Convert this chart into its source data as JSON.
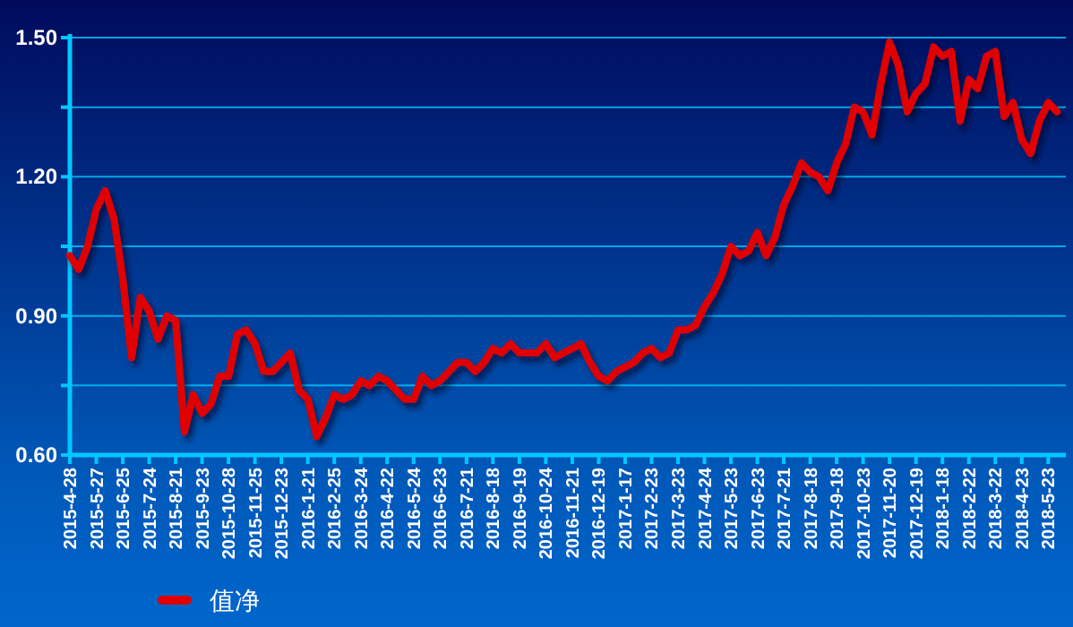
{
  "chart_data": {
    "type": "line",
    "categories": [
      "2015-4-28",
      null,
      null,
      "2015-5-27",
      null,
      null,
      "2015-6-25",
      null,
      null,
      "2015-7-24",
      null,
      null,
      "2015-8-21",
      null,
      null,
      "2015-9-23",
      null,
      null,
      "2015-10-28",
      null,
      null,
      "2015-11-25",
      null,
      null,
      "2015-12-23",
      null,
      null,
      "2016-1-21",
      null,
      null,
      "2016-2-25",
      null,
      null,
      "2016-3-24",
      null,
      null,
      "2016-4-22",
      null,
      null,
      "2016-5-24",
      null,
      null,
      "2016-6-23",
      null,
      null,
      "2016-7-21",
      null,
      null,
      "2016-8-18",
      null,
      null,
      "2016-9-19",
      null,
      null,
      "2016-10-24",
      null,
      null,
      "2016-11-21",
      null,
      null,
      "2016-12-19",
      null,
      null,
      "2017-1-17",
      null,
      null,
      "2017-2-23",
      null,
      null,
      "2017-3-23",
      null,
      null,
      "2017-4-24",
      null,
      null,
      "2017-5-23",
      null,
      null,
      "2017-6-23",
      null,
      null,
      "2017-7-21",
      null,
      null,
      "2017-8-18",
      null,
      null,
      "2017-9-18",
      null,
      null,
      "2017-10-23",
      null,
      null,
      "2017-11-20",
      null,
      null,
      "2017-12-19",
      null,
      null,
      "2018-1-18",
      null,
      null,
      "2018-2-22",
      null,
      null,
      "2018-3-22",
      null,
      null,
      "2018-4-23",
      null,
      null,
      "2018-5-23",
      null
    ],
    "series": [
      {
        "name": "值净",
        "color": "#e00000",
        "values": [
          1.03,
          1.0,
          1.05,
          1.13,
          1.17,
          1.11,
          0.98,
          0.81,
          0.94,
          0.91,
          0.85,
          0.9,
          0.89,
          0.65,
          0.73,
          0.69,
          0.71,
          0.77,
          0.77,
          0.86,
          0.87,
          0.84,
          0.78,
          0.78,
          0.8,
          0.82,
          0.74,
          0.72,
          0.64,
          0.68,
          0.73,
          0.72,
          0.73,
          0.76,
          0.75,
          0.77,
          0.76,
          0.74,
          0.72,
          0.72,
          0.77,
          0.75,
          0.76,
          0.78,
          0.8,
          0.8,
          0.78,
          0.8,
          0.83,
          0.82,
          0.84,
          0.82,
          0.82,
          0.82,
          0.84,
          0.81,
          0.82,
          0.83,
          0.84,
          0.8,
          0.77,
          0.76,
          0.78,
          0.79,
          0.8,
          0.82,
          0.83,
          0.81,
          0.82,
          0.87,
          0.87,
          0.88,
          0.92,
          0.95,
          0.99,
          1.05,
          1.03,
          1.04,
          1.08,
          1.03,
          1.07,
          1.14,
          1.18,
          1.23,
          1.21,
          1.2,
          1.17,
          1.23,
          1.27,
          1.35,
          1.34,
          1.29,
          1.4,
          1.49,
          1.44,
          1.34,
          1.38,
          1.4,
          1.48,
          1.46,
          1.47,
          1.32,
          1.41,
          1.39,
          1.46,
          1.47,
          1.33,
          1.36,
          1.28,
          1.25,
          1.32,
          1.36,
          1.34
        ]
      }
    ],
    "ylim": [
      0.6,
      1.5
    ],
    "yticks": [
      {
        "value": 0.6,
        "label": "0.60"
      },
      {
        "value": 0.75,
        "label": null
      },
      {
        "value": 0.9,
        "label": "0.90"
      },
      {
        "value": 1.05,
        "label": null
      },
      {
        "value": 1.2,
        "label": "1.20"
      },
      {
        "value": 1.35,
        "label": null
      },
      {
        "value": 1.5,
        "label": "1.50"
      }
    ],
    "grid": "y",
    "legend": "bottom left"
  }
}
